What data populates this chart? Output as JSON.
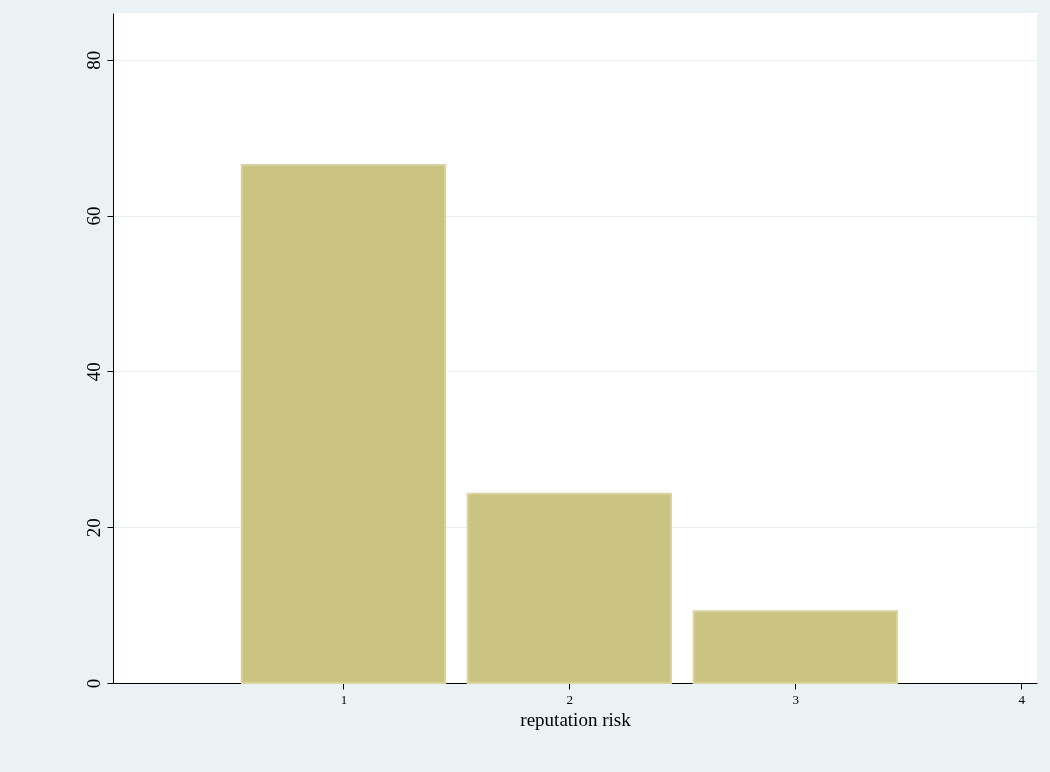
{
  "chart_data": {
    "type": "bar",
    "xlabel": "reputation risk",
    "x": [
      1,
      2,
      3
    ],
    "values": [
      66.5,
      24.3,
      9.2
    ],
    "color": "#cbc382",
    "xlim": [
      -0.02,
      4.07
    ],
    "xticks": [
      1,
      2,
      3,
      4
    ],
    "ylim": [
      0,
      86
    ],
    "yticks": [
      0,
      20,
      40,
      60,
      80
    ],
    "grid": "y"
  }
}
